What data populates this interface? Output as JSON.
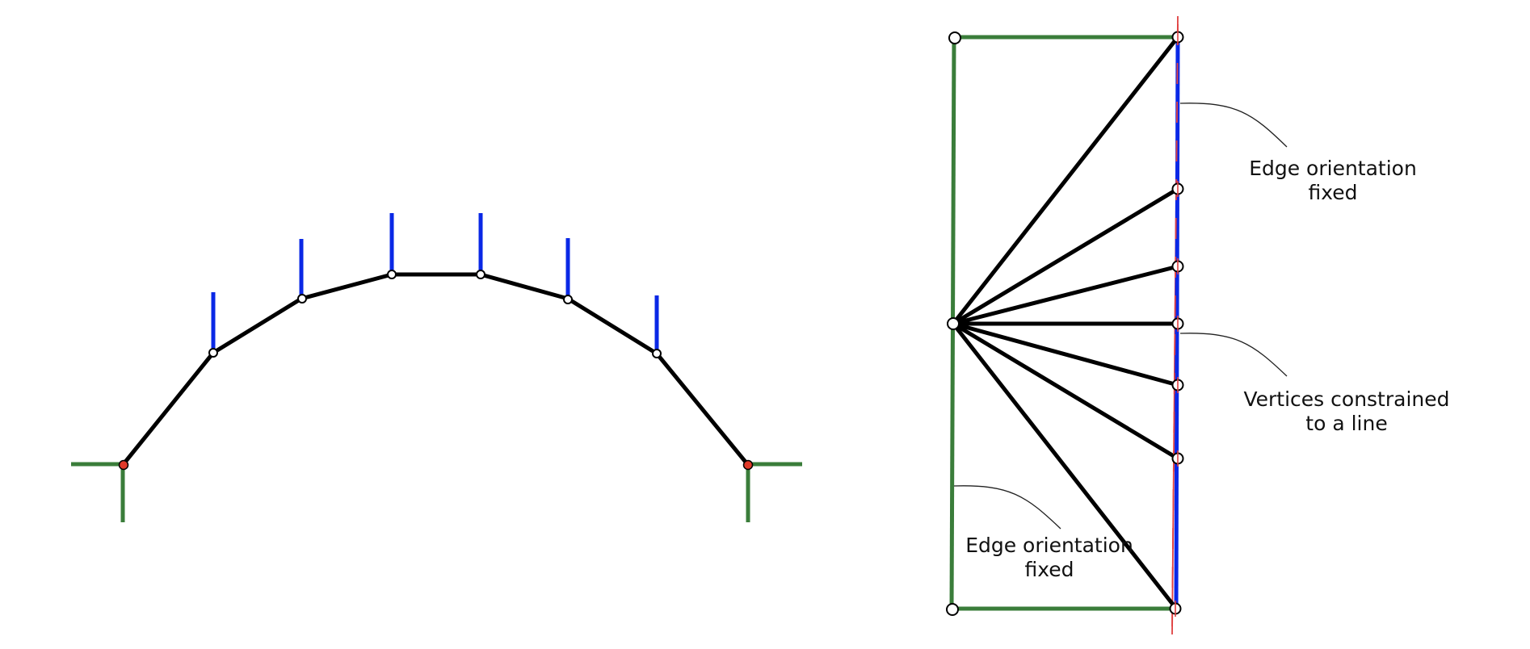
{
  "colors": {
    "background": "#ffffff",
    "structure_edge": "#000000",
    "fixed_orientation_edge": "#3a7d3a",
    "vertical_constraint_edge": "#0a28e6",
    "constraint_line": "#e04040",
    "fixed_vertex_fill": "#e03a2a",
    "vertex_fill": "#ffffff",
    "annotation_leader": "#222222",
    "label_text": "#111111"
  },
  "annotations": {
    "top_right": {
      "line1": "Edge orientation",
      "line2": "fixed"
    },
    "middle_right": {
      "line1": "Vertices constrained",
      "line2": "to a line"
    },
    "bottom_left": {
      "line1": "Edge orientation",
      "line2": "fixed"
    }
  }
}
